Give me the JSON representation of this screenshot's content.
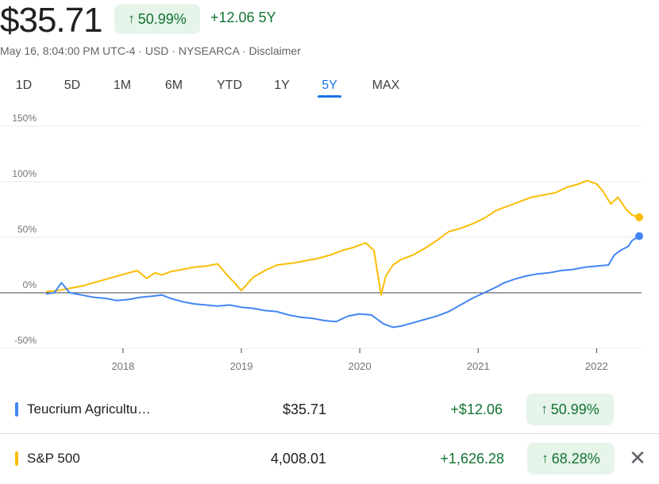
{
  "quote": {
    "price": "$35.71",
    "percent_change": "50.99%",
    "change": "+12.06",
    "period": "5Y",
    "meta": "May 16, 8:04:00 PM UTC-4 · USD · NYSEARCA · Disclaimer"
  },
  "tabs": [
    "1D",
    "5D",
    "1M",
    "6M",
    "YTD",
    "1Y",
    "5Y",
    "MAX"
  ],
  "active_tab": "5Y",
  "colors": {
    "blue_series": "#4285f4",
    "yellow_series": "#fbbc04",
    "positive": "#137333",
    "positive_bg": "#e6f4ea",
    "active_tab": "#1a73e8"
  },
  "chart_data": {
    "type": "line",
    "y_tick_labels": [
      "150%",
      "100%",
      "50%",
      "0%",
      "-50%"
    ],
    "y_ticks": [
      150,
      100,
      50,
      0,
      -50
    ],
    "x_tick_labels": [
      "2018",
      "2019",
      "2020",
      "2021",
      "2022"
    ],
    "x_ticks": [
      2018.0,
      2019.0,
      2020.0,
      2021.0,
      2022.0
    ],
    "xlim": [
      2017.35,
      2022.38
    ],
    "ylim": [
      -50,
      150
    ],
    "grid": true,
    "series": [
      {
        "color": "#fbbc04",
        "x": [
          2017.35,
          2017.45,
          2017.55,
          2017.65,
          2017.75,
          2017.85,
          2017.95,
          2018.05,
          2018.12,
          2018.2,
          2018.27,
          2018.33,
          2018.4,
          2018.5,
          2018.6,
          2018.7,
          2018.8,
          2018.88,
          2018.95,
          2019.0,
          2019.1,
          2019.2,
          2019.3,
          2019.45,
          2019.55,
          2019.65,
          2019.75,
          2019.85,
          2019.95,
          2020.05,
          2020.12,
          2020.15,
          2020.18,
          2020.22,
          2020.28,
          2020.35,
          2020.45,
          2020.55,
          2020.65,
          2020.75,
          2020.85,
          2020.95,
          2021.05,
          2021.15,
          2021.25,
          2021.35,
          2021.45,
          2021.55,
          2021.65,
          2021.75,
          2021.85,
          2021.92,
          2022.0,
          2022.05,
          2022.12,
          2022.18,
          2022.25,
          2022.3,
          2022.36
        ],
        "y": [
          1,
          2,
          4,
          6,
          9,
          12,
          15,
          18,
          20,
          13,
          18,
          16,
          19,
          21,
          23,
          24,
          26,
          16,
          8,
          2,
          14,
          20,
          25,
          27,
          29,
          31,
          34,
          38,
          41,
          45,
          38,
          18,
          -2,
          15,
          25,
          30,
          34,
          40,
          47,
          55,
          58,
          62,
          67,
          74,
          78,
          82,
          86,
          88,
          90,
          95,
          98,
          101,
          98,
          92,
          80,
          86,
          75,
          70,
          68
        ]
      },
      {
        "color": "#4285f4",
        "x": [
          2017.35,
          2017.42,
          2017.48,
          2017.55,
          2017.65,
          2017.75,
          2017.85,
          2017.95,
          2018.05,
          2018.15,
          2018.25,
          2018.33,
          2018.4,
          2018.5,
          2018.6,
          2018.7,
          2018.8,
          2018.9,
          2019.0,
          2019.1,
          2019.2,
          2019.3,
          2019.4,
          2019.5,
          2019.6,
          2019.7,
          2019.8,
          2019.9,
          2020.0,
          2020.1,
          2020.2,
          2020.28,
          2020.35,
          2020.45,
          2020.55,
          2020.65,
          2020.75,
          2020.85,
          2020.95,
          2021.05,
          2021.15,
          2021.22,
          2021.3,
          2021.4,
          2021.5,
          2021.6,
          2021.7,
          2021.8,
          2021.9,
          2022.0,
          2022.1,
          2022.15,
          2022.2,
          2022.27,
          2022.3,
          2022.36
        ],
        "y": [
          -1,
          0,
          9,
          0,
          -2,
          -4,
          -5,
          -7,
          -6,
          -4,
          -3,
          -2,
          -5,
          -8,
          -10,
          -11,
          -12,
          -11,
          -13,
          -14,
          -16,
          -17,
          -20,
          -22,
          -23,
          -25,
          -26,
          -21,
          -19,
          -20,
          -28,
          -31,
          -30,
          -27,
          -24,
          -21,
          -17,
          -11,
          -5,
          0,
          5,
          9,
          12,
          15,
          17,
          18,
          20,
          21,
          23,
          24,
          25,
          34,
          38,
          42,
          47,
          51
        ]
      }
    ]
  },
  "comparison": [
    {
      "name": "Teucrium Agricultu…",
      "price": "$35.71",
      "change": "+$12.06",
      "percent": "50.99%"
    },
    {
      "name": "S&P 500",
      "price": "4,008.01",
      "change": "+1,626.28",
      "percent": "68.28%"
    }
  ],
  "arrow_symbol": "↑",
  "close_symbol": "✕"
}
